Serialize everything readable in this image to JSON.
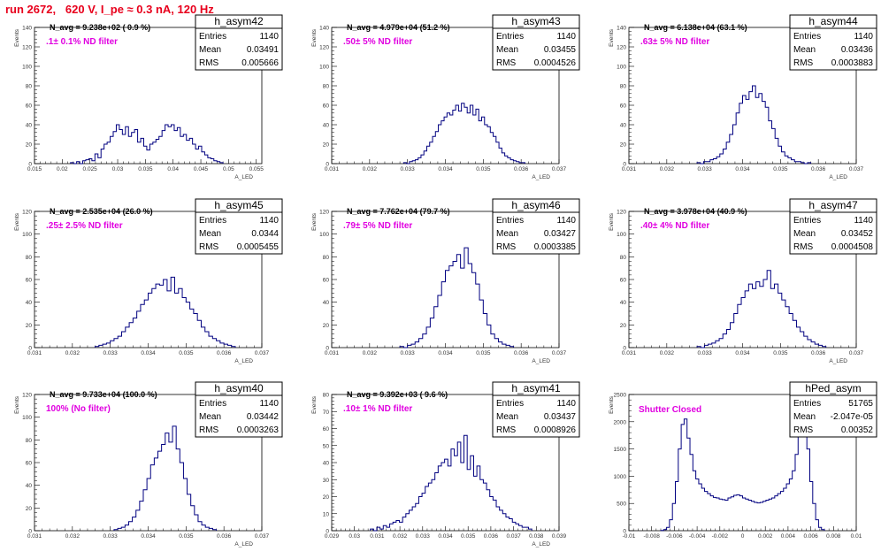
{
  "run_title": "run 2672,   620 V, I_pe ≈ 0.3 nA, 120 Hz",
  "colors": {
    "title": "#e8001c",
    "histogram": "#000080",
    "filter_label": "#e000e0"
  },
  "chart_data": [
    {
      "type": "histogram",
      "name": "h_asym42",
      "n_avg": "N_avg = 9.238e+02 ( 0.9 %)",
      "filter": ".1± 0.1% ND filter",
      "stats": {
        "entries": "1140",
        "mean": "0.03491",
        "rms": "0.005666"
      },
      "xlim": [
        0.015,
        0.056
      ],
      "ylim": [
        0,
        140
      ],
      "xticks": [
        0.015,
        0.02,
        0.025,
        0.03,
        0.035,
        0.04,
        0.045,
        0.05,
        0.055
      ],
      "xtick_labels": [
        "0.015",
        "0.02",
        "0.025",
        "0.03",
        "0.035",
        "0.04",
        "0.045",
        "0.05",
        "0.055"
      ],
      "yticks": [
        0,
        20,
        40,
        60,
        80,
        100,
        120,
        140
      ],
      "xlabel": "A_LED",
      "ylabel": "Events",
      "bin_edges_x": [
        0.0215,
        0.049
      ],
      "counts": [
        1,
        0,
        2,
        0,
        3,
        4,
        5,
        3,
        10,
        6,
        15,
        20,
        22,
        28,
        33,
        40,
        35,
        30,
        38,
        28,
        32,
        35,
        22,
        26,
        18,
        14,
        20,
        22,
        25,
        28,
        34,
        40,
        38,
        40,
        34,
        37,
        28,
        30,
        24,
        26,
        20,
        15,
        18,
        12,
        9,
        6,
        5,
        3,
        2,
        1
      ]
    },
    {
      "type": "histogram",
      "name": "h_asym43",
      "n_avg": "N_avg = 4.979e+04 (51.2 %)",
      "filter": ".50± 5% ND filter",
      "stats": {
        "entries": "1140",
        "mean": "0.03455",
        "rms": "0.0004526"
      },
      "xlim": [
        0.031,
        0.037
      ],
      "ylim": [
        0,
        140
      ],
      "xticks": [
        0.031,
        0.032,
        0.033,
        0.034,
        0.035,
        0.036,
        0.037
      ],
      "xtick_labels": [
        "0.031",
        "0.032",
        "0.033",
        "0.034",
        "0.035",
        "0.036",
        "0.037"
      ],
      "yticks": [
        0,
        20,
        40,
        60,
        80,
        100,
        120,
        140
      ],
      "xlabel": "A_LED",
      "ylabel": "Events",
      "bin_edges_x": [
        0.0329,
        0.0361
      ],
      "counts": [
        1,
        0,
        2,
        3,
        4,
        6,
        9,
        13,
        18,
        22,
        28,
        33,
        40,
        44,
        48,
        52,
        50,
        55,
        60,
        54,
        62,
        58,
        52,
        60,
        50,
        56,
        44,
        48,
        40,
        38,
        32,
        28,
        22,
        16,
        11,
        8,
        6,
        4,
        3,
        2,
        1,
        1
      ]
    },
    {
      "type": "histogram",
      "name": "h_asym44",
      "n_avg": "N_avg = 6.138e+04 (63.1 %)",
      "filter": ".63± 5% ND filter",
      "stats": {
        "entries": "1140",
        "mean": "0.03436",
        "rms": "0.0003883"
      },
      "xlim": [
        0.031,
        0.037
      ],
      "ylim": [
        0,
        140
      ],
      "xticks": [
        0.031,
        0.032,
        0.033,
        0.034,
        0.035,
        0.036,
        0.037
      ],
      "xtick_labels": [
        "0.031",
        "0.032",
        "0.033",
        "0.034",
        "0.035",
        "0.036",
        "0.037"
      ],
      "yticks": [
        0,
        20,
        40,
        60,
        80,
        100,
        120,
        140
      ],
      "xlabel": "A_LED",
      "ylabel": "Events",
      "bin_edges_x": [
        0.0328,
        0.0358
      ],
      "counts": [
        1,
        0,
        2,
        2,
        4,
        5,
        7,
        10,
        15,
        22,
        30,
        40,
        52,
        62,
        70,
        66,
        74,
        80,
        68,
        72,
        64,
        58,
        44,
        36,
        26,
        18,
        12,
        8,
        6,
        4,
        2,
        2,
        1,
        0,
        1
      ]
    },
    {
      "type": "histogram",
      "name": "h_asym45",
      "n_avg": "N_avg = 2.535e+04 (26.0 %)",
      "filter": ".25± 2.5% ND filter",
      "stats": {
        "entries": "1140",
        "mean": "0.0344",
        "rms": "0.0005455"
      },
      "xlim": [
        0.031,
        0.037
      ],
      "ylim": [
        0,
        120
      ],
      "xticks": [
        0.031,
        0.032,
        0.033,
        0.034,
        0.035,
        0.036,
        0.037
      ],
      "xtick_labels": [
        "0.031",
        "0.032",
        "0.033",
        "0.034",
        "0.035",
        "0.036",
        "0.037"
      ],
      "yticks": [
        0,
        20,
        40,
        60,
        80,
        100,
        120
      ],
      "xlabel": "A_LED",
      "ylabel": "Events",
      "bin_edges_x": [
        0.0326,
        0.0363
      ],
      "counts": [
        1,
        2,
        3,
        4,
        6,
        8,
        10,
        14,
        18,
        22,
        26,
        32,
        38,
        42,
        48,
        52,
        56,
        55,
        60,
        50,
        62,
        48,
        52,
        44,
        40,
        34,
        30,
        24,
        18,
        14,
        10,
        8,
        6,
        4,
        3,
        2,
        1
      ]
    },
    {
      "type": "histogram",
      "name": "h_asym46",
      "n_avg": "N_avg = 7.762e+04 (79.7 %)",
      "filter": ".79± 5% ND filter",
      "stats": {
        "entries": "1140",
        "mean": "0.03427",
        "rms": "0.0003385"
      },
      "xlim": [
        0.031,
        0.037
      ],
      "ylim": [
        0,
        120
      ],
      "xticks": [
        0.031,
        0.032,
        0.033,
        0.034,
        0.035,
        0.036,
        0.037
      ],
      "xtick_labels": [
        "0.031",
        "0.032",
        "0.033",
        "0.034",
        "0.035",
        "0.036",
        "0.037"
      ],
      "yticks": [
        0,
        20,
        40,
        60,
        80,
        100,
        120
      ],
      "xlabel": "A_LED",
      "ylabel": "Events",
      "bin_edges_x": [
        0.0328,
        0.0358
      ],
      "counts": [
        1,
        0,
        2,
        3,
        5,
        8,
        12,
        18,
        26,
        36,
        46,
        58,
        68,
        72,
        76,
        82,
        70,
        88,
        74,
        66,
        56,
        42,
        30,
        20,
        12,
        8,
        5,
        3,
        2,
        1
      ]
    },
    {
      "type": "histogram",
      "name": "h_asym47",
      "n_avg": "N_avg = 3.978e+04 (40.9 %)",
      "filter": ".40± 4% ND filter",
      "stats": {
        "entries": "1140",
        "mean": "0.03452",
        "rms": "0.0004508"
      },
      "xlim": [
        0.031,
        0.037
      ],
      "ylim": [
        0,
        120
      ],
      "xticks": [
        0.031,
        0.032,
        0.033,
        0.034,
        0.035,
        0.036,
        0.037
      ],
      "xtick_labels": [
        "0.031",
        "0.032",
        "0.033",
        "0.034",
        "0.035",
        "0.036",
        "0.037"
      ],
      "yticks": [
        0,
        20,
        40,
        60,
        80,
        100,
        120
      ],
      "xlabel": "A_LED",
      "ylabel": "Events",
      "bin_edges_x": [
        0.0328,
        0.0362
      ],
      "counts": [
        1,
        0,
        2,
        3,
        4,
        6,
        8,
        12,
        16,
        22,
        30,
        38,
        44,
        50,
        56,
        52,
        58,
        54,
        60,
        68,
        52,
        56,
        48,
        42,
        36,
        30,
        24,
        18,
        14,
        10,
        7,
        5,
        3,
        2,
        1
      ]
    },
    {
      "type": "histogram",
      "name": "h_asym40",
      "n_avg": "N_avg = 9.733e+04 (100.0 %)",
      "filter": "100% (No filter)",
      "stats": {
        "entries": "1140",
        "mean": "0.03442",
        "rms": "0.0003263"
      },
      "xlim": [
        0.031,
        0.037
      ],
      "ylim": [
        0,
        120
      ],
      "xticks": [
        0.031,
        0.032,
        0.033,
        0.034,
        0.035,
        0.036,
        0.037
      ],
      "xtick_labels": [
        "0.031",
        "0.032",
        "0.033",
        "0.034",
        "0.035",
        "0.036",
        "0.037"
      ],
      "yticks": [
        0,
        20,
        40,
        60,
        80,
        100,
        120
      ],
      "xlabel": "A_LED",
      "ylabel": "Events",
      "bin_edges_x": [
        0.0331,
        0.0358
      ],
      "counts": [
        1,
        2,
        3,
        5,
        8,
        12,
        18,
        26,
        36,
        46,
        58,
        64,
        70,
        76,
        86,
        78,
        92,
        72,
        60,
        46,
        32,
        22,
        14,
        8,
        5,
        3,
        2,
        1
      ]
    },
    {
      "type": "histogram",
      "name": "h_asym41",
      "n_avg": "N_avg = 9.392e+03 ( 9.6 %)",
      "filter": ".10± 1% ND filter",
      "stats": {
        "entries": "1140",
        "mean": "0.03437",
        "rms": "0.0008926"
      },
      "xlim": [
        0.029,
        0.039
      ],
      "ylim": [
        0,
        80
      ],
      "xticks": [
        0.029,
        0.03,
        0.031,
        0.032,
        0.033,
        0.034,
        0.035,
        0.036,
        0.037,
        0.038,
        0.039
      ],
      "xtick_labels": [
        "0.029",
        "0.03",
        "0.031",
        "0.032",
        "0.033",
        "0.034",
        "0.035",
        "0.036",
        "0.037",
        "0.038",
        "0.039"
      ],
      "yticks": [
        0,
        10,
        20,
        30,
        40,
        50,
        60,
        70,
        80
      ],
      "xlabel": "A_LED",
      "ylabel": "Events",
      "bin_edges_x": [
        0.0307,
        0.0378
      ],
      "counts": [
        1,
        0,
        2,
        1,
        3,
        2,
        4,
        5,
        6,
        5,
        8,
        10,
        12,
        14,
        16,
        20,
        22,
        26,
        28,
        30,
        34,
        38,
        40,
        42,
        38,
        48,
        44,
        52,
        40,
        56,
        36,
        44,
        32,
        38,
        30,
        28,
        24,
        20,
        18,
        14,
        12,
        10,
        8,
        7,
        5,
        4,
        3,
        2,
        2,
        1
      ]
    },
    {
      "type": "histogram",
      "name": "hPed_asym",
      "n_avg": "",
      "filter": "Shutter Closed",
      "stats": {
        "entries": "51765",
        "mean": "-2.047e-05",
        "rms": "0.00352"
      },
      "xlim": [
        -0.01,
        0.01
      ],
      "ylim": [
        0,
        2500
      ],
      "xticks": [
        -0.01,
        -0.008,
        -0.006,
        -0.004,
        -0.002,
        0,
        0.002,
        0.004,
        0.006,
        0.008,
        0.01
      ],
      "xtick_labels": [
        "-0.01",
        "-0.008",
        "-0.006",
        "-0.004",
        "-0.002",
        "0",
        "0.002",
        "0.004",
        "0.006",
        "0.008",
        "0.01"
      ],
      "yticks": [
        0,
        500,
        1000,
        1500,
        2000,
        2500
      ],
      "xlabel": "",
      "ylabel": "Events",
      "bin_edges_x": [
        -0.0072,
        0.0072
      ],
      "counts": [
        5,
        20,
        60,
        200,
        500,
        900,
        1500,
        1950,
        2050,
        1700,
        1400,
        1100,
        950,
        860,
        780,
        720,
        680,
        640,
        610,
        600,
        580,
        570,
        560,
        600,
        620,
        650,
        660,
        640,
        600,
        580,
        560,
        540,
        520,
        510,
        520,
        540,
        560,
        580,
        600,
        640,
        680,
        720,
        780,
        860,
        950,
        1100,
        1400,
        1750,
        1950,
        2000,
        1500,
        900,
        500,
        200,
        60,
        20
      ]
    }
  ]
}
